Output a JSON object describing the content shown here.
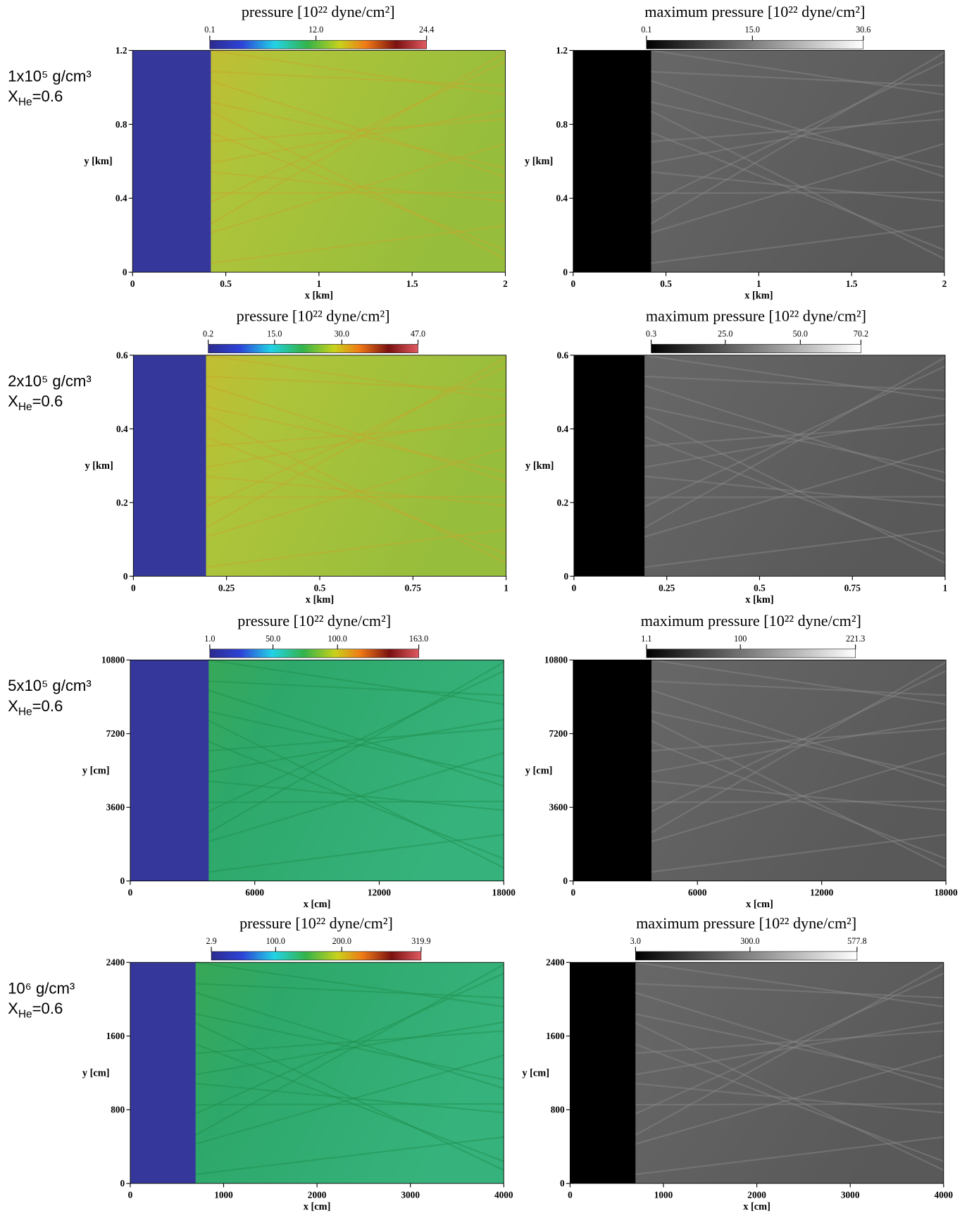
{
  "chart_data": [
    {
      "type": "image",
      "colormap": "rainbow",
      "colorbar_title": "pressure [10²² dyne/cm²]",
      "cticks": [
        0.1,
        {
          "value": 12,
          "label": "12.0"
        },
        24.4
      ],
      "xlim": [
        0,
        2
      ],
      "ylim": [
        0,
        1.2
      ],
      "xticks": [
        0,
        0.5,
        1,
        1.5,
        2
      ],
      "yticks": [
        0,
        0.4,
        0.8,
        1.2
      ],
      "xlabel": "x [km]",
      "ylabel": "y [km]"
    },
    {
      "type": "image",
      "colormap": "gray",
      "colorbar_title": "maximum pressure [10²² dyne/cm²]",
      "cticks": [
        0.1,
        {
          "value": 15,
          "label": "15.0"
        },
        30.6
      ],
      "xlim": [
        0,
        2
      ],
      "ylim": [
        0,
        1.2
      ],
      "xticks": [
        0,
        0.5,
        1,
        1.5,
        2
      ],
      "yticks": [
        0,
        0.4,
        0.8,
        1.2
      ],
      "xlabel": "x [km]",
      "ylabel": "y [km]"
    },
    {
      "type": "image",
      "colormap": "rainbow",
      "colorbar_title": "pressure [10²² dyne/cm²]",
      "cticks": [
        0.2,
        {
          "value": 15,
          "label": "15.0"
        },
        {
          "value": 30,
          "label": "30.0"
        },
        {
          "value": 47,
          "label": "47.0"
        }
      ],
      "xlim": [
        0,
        1
      ],
      "ylim": [
        0,
        0.6
      ],
      "xticks": [
        0,
        0.25,
        0.5,
        0.75,
        1
      ],
      "yticks": [
        0,
        0.2,
        0.4,
        0.6
      ],
      "xlabel": "x [km]",
      "ylabel": "y [km]"
    },
    {
      "type": "image",
      "colormap": "gray",
      "colorbar_title": "maximum pressure [10²² dyne/cm²]",
      "cticks": [
        0.3,
        {
          "value": 25,
          "label": "25.0"
        },
        {
          "value": 50,
          "label": "50.0"
        },
        70.2
      ],
      "xlim": [
        0,
        1
      ],
      "ylim": [
        0,
        0.6
      ],
      "xticks": [
        0,
        0.25,
        0.5,
        0.75,
        1
      ],
      "yticks": [
        0,
        0.2,
        0.4,
        0.6
      ],
      "xlabel": "x [km]",
      "ylabel": "y [km]"
    },
    {
      "type": "image",
      "colormap": "rainbow",
      "colorbar_title": "pressure [10²² dyne/cm²]",
      "cticks": [
        {
          "value": 1,
          "label": "1.0"
        },
        {
          "value": 50,
          "label": "50.0"
        },
        {
          "value": 100,
          "label": "100.0"
        },
        {
          "value": 163,
          "label": "163.0"
        }
      ],
      "xlim": [
        0,
        18000
      ],
      "ylim": [
        0,
        10800
      ],
      "xticks": [
        0,
        6000,
        12000,
        18000
      ],
      "yticks": [
        0,
        3600,
        7200,
        10800
      ],
      "xlabel": "x [cm]",
      "ylabel": "y [cm]"
    },
    {
      "type": "image",
      "colormap": "gray",
      "colorbar_title": "maximum pressure [10²² dyne/cm²]",
      "cticks": [
        1.1,
        100,
        221.3
      ],
      "xlim": [
        0,
        18000
      ],
      "ylim": [
        0,
        10800
      ],
      "xticks": [
        0,
        6000,
        12000,
        18000
      ],
      "yticks": [
        0,
        3600,
        7200,
        10800
      ],
      "xlabel": "x [cm]",
      "ylabel": "y [cm]"
    },
    {
      "type": "image",
      "colormap": "rainbow",
      "colorbar_title": "pressure [10²² dyne/cm²]",
      "cticks": [
        2.9,
        {
          "value": 100,
          "label": "100.0"
        },
        {
          "value": 200,
          "label": "200.0"
        },
        319.9
      ],
      "xlim": [
        0,
        4000
      ],
      "ylim": [
        0,
        2400
      ],
      "xticks": [
        0,
        1000,
        2000,
        3000,
        4000
      ],
      "yticks": [
        0,
        800,
        1600,
        2400
      ],
      "xlabel": "x [cm]",
      "ylabel": "y [cm]"
    },
    {
      "type": "image",
      "colormap": "gray",
      "colorbar_title": "maximum pressure [10²² dyne/cm²]",
      "cticks": [
        {
          "value": 3,
          "label": "3.0"
        },
        {
          "value": 300,
          "label": "300.0"
        },
        577.8
      ],
      "xlim": [
        0,
        4000
      ],
      "ylim": [
        0,
        2400
      ],
      "xticks": [
        0,
        1000,
        2000,
        3000,
        4000
      ],
      "yticks": [
        0,
        800,
        1600,
        2400
      ],
      "xlabel": "x [cm]",
      "ylabel": "y [cm]"
    }
  ],
  "row_labels": [
    {
      "density": "1x10⁵ g/cm³",
      "composition": [
        "X",
        "He",
        "=0.6"
      ]
    },
    {
      "density": "2x10⁵ g/cm³",
      "composition": [
        "X",
        "He",
        "=0.6"
      ]
    },
    {
      "density": "5x10⁵ g/cm³",
      "composition": [
        "X",
        "He",
        "=0.6"
      ]
    },
    {
      "density": "10⁶ g/cm³",
      "composition": [
        "X",
        "He",
        "=0.6"
      ]
    }
  ]
}
